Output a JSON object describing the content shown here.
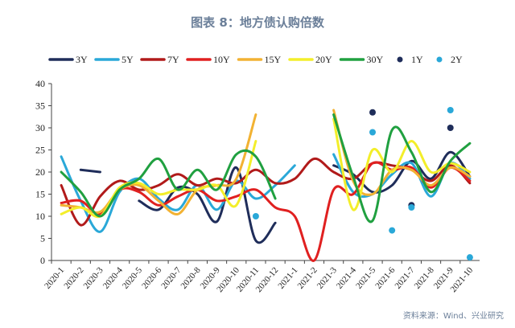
{
  "title": "图表 8：地方债认购倍数",
  "source": "资料来源：Wind、兴业研究",
  "chart_data": {
    "type": "line",
    "title": "图表 8：地方债认购倍数",
    "categories": [
      "2020-1",
      "2020-2",
      "2020-3",
      "2020-4",
      "2020-5",
      "2020-6",
      "2020-7",
      "2020-8",
      "2020-9",
      "2020-10",
      "2020-11",
      "2020-12",
      "2021-1",
      "2021-2",
      "2021-3",
      "2021-4",
      "2021-5",
      "2021-6",
      "2021-7",
      "2021-8",
      "2021-9",
      "2021-10"
    ],
    "ylim": [
      0,
      40
    ],
    "yticks": [
      0,
      5,
      10,
      15,
      20,
      25,
      30,
      35,
      40
    ],
    "grid": false,
    "legend": "top",
    "series": [
      {
        "name": "3Y",
        "kind": "line",
        "color": "#1f2d5a",
        "values": [
          null,
          20.5,
          20.0,
          null,
          13.5,
          11.5,
          16.5,
          15.0,
          8.8,
          21.0,
          4.5,
          8.5,
          null,
          null,
          21.5,
          19.5,
          15.5,
          17.0,
          22.5,
          18.5,
          24.5,
          19.0
        ]
      },
      {
        "name": "5Y",
        "kind": "line",
        "color": "#2aa8d8",
        "values": [
          23.5,
          13.5,
          6.5,
          15.5,
          18.5,
          14.0,
          11.5,
          17.0,
          11.5,
          18.0,
          14.0,
          17.0,
          21.5,
          null,
          24.0,
          15.5,
          15.0,
          19.5,
          22.0,
          14.5,
          22.0,
          18.5
        ]
      },
      {
        "name": "7Y",
        "kind": "line",
        "color": "#b11a1a",
        "values": [
          17.0,
          8.0,
          14.5,
          18.0,
          16.0,
          17.0,
          19.5,
          17.0,
          18.5,
          17.5,
          20.5,
          17.5,
          18.5,
          23.0,
          20.0,
          18.5,
          22.0,
          21.5,
          20.5,
          18.0,
          21.5,
          17.5
        ]
      },
      {
        "name": "10Y",
        "kind": "line",
        "color": "#e02020",
        "values": [
          13.0,
          13.5,
          10.5,
          16.0,
          15.5,
          12.5,
          14.5,
          16.0,
          13.5,
          14.5,
          16.0,
          12.0,
          10.0,
          0.0,
          16.0,
          15.0,
          22.0,
          20.5,
          21.0,
          16.5,
          21.0,
          18.0
        ]
      },
      {
        "name": "15Y",
        "kind": "line",
        "color": "#f2b233",
        "values": [
          12.5,
          12.0,
          11.0,
          16.0,
          17.0,
          13.5,
          10.5,
          16.0,
          17.0,
          18.5,
          33.0,
          null,
          null,
          null,
          34.0,
          18.0,
          15.0,
          20.5,
          20.5,
          17.0,
          21.0,
          19.0
        ]
      },
      {
        "name": "20Y",
        "kind": "line",
        "color": "#f3ee2a",
        "values": [
          10.5,
          12.0,
          10.0,
          16.5,
          17.5,
          15.0,
          16.0,
          16.0,
          17.0,
          12.5,
          27.0,
          null,
          null,
          null,
          32.0,
          11.5,
          25.0,
          20.0,
          27.0,
          20.0,
          22.0,
          20.0
        ]
      },
      {
        "name": "30Y",
        "kind": "line",
        "color": "#20a040",
        "values": [
          20.0,
          15.5,
          10.0,
          16.0,
          18.5,
          23.0,
          16.0,
          20.5,
          16.0,
          24.0,
          23.5,
          14.0,
          null,
          null,
          33.0,
          19.0,
          9.0,
          29.5,
          24.5,
          15.5,
          22.5,
          26.5
        ]
      },
      {
        "name": "1Y",
        "kind": "scatter",
        "color": "#1f2d5a",
        "values": [
          null,
          null,
          null,
          null,
          null,
          null,
          null,
          null,
          null,
          null,
          null,
          null,
          null,
          null,
          null,
          null,
          33.5,
          null,
          12.5,
          null,
          30.0,
          null
        ]
      },
      {
        "name": "2Y",
        "kind": "scatter",
        "color": "#2aa8d8",
        "values": [
          null,
          null,
          null,
          null,
          null,
          null,
          null,
          null,
          null,
          null,
          10.0,
          null,
          null,
          null,
          null,
          null,
          29.0,
          6.8,
          12.0,
          null,
          34.0,
          0.7
        ]
      }
    ]
  }
}
